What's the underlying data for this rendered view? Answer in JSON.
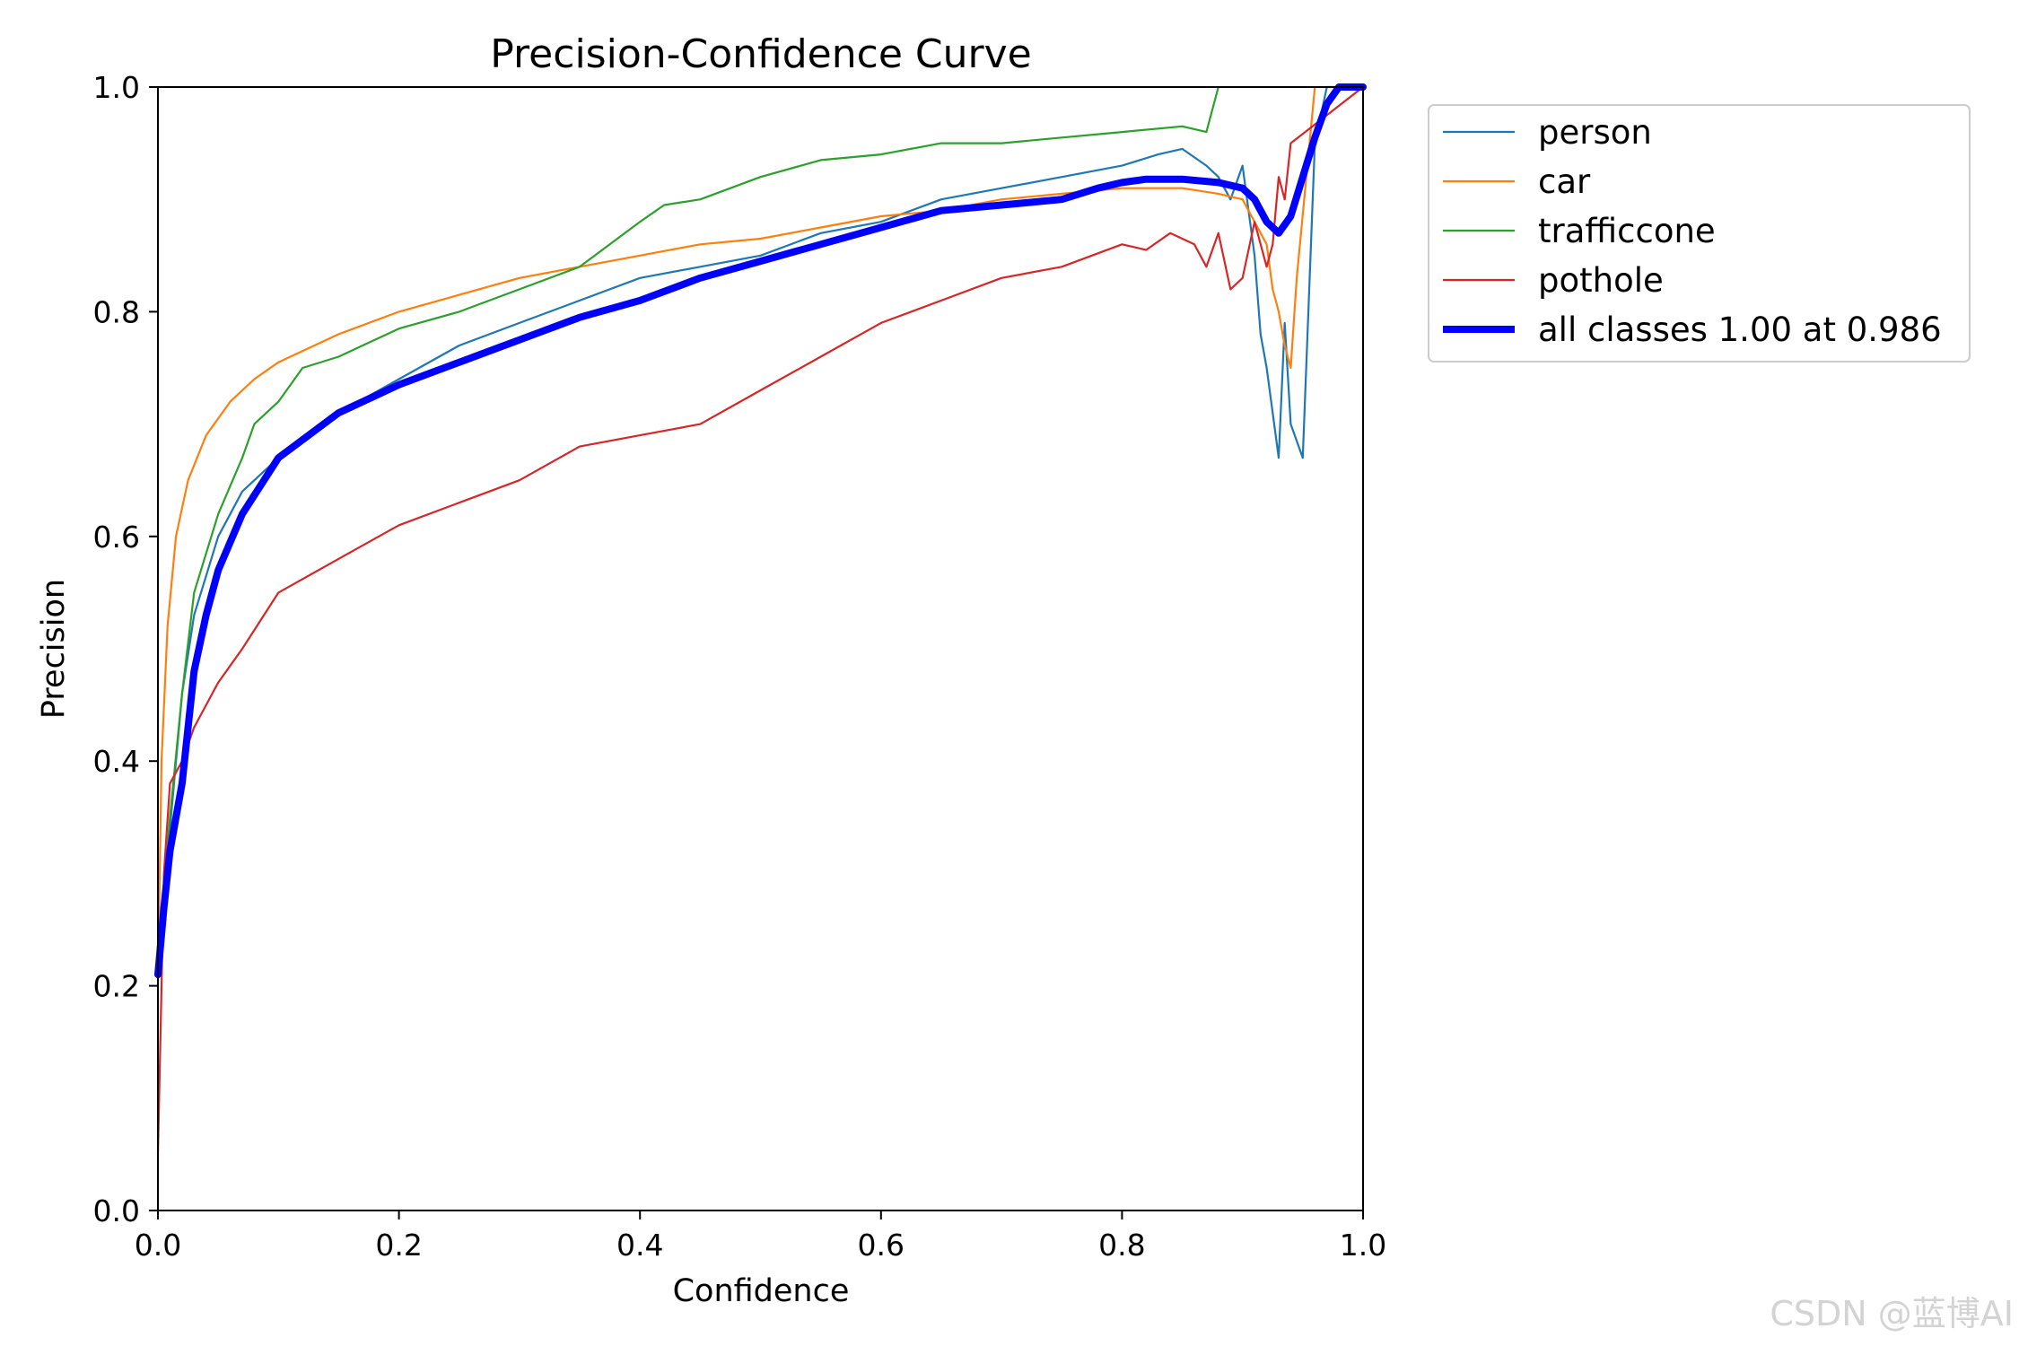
{
  "chart_data": {
    "type": "line",
    "title": "Precision-Confidence Curve",
    "xlabel": "Confidence",
    "ylabel": "Precision",
    "xlim": [
      0,
      1
    ],
    "ylim": [
      0,
      1
    ],
    "xticks": [
      "0.0",
      "0.2",
      "0.4",
      "0.6",
      "0.8",
      "1.0"
    ],
    "yticks": [
      "0.0",
      "0.2",
      "0.4",
      "0.6",
      "0.8",
      "1.0"
    ],
    "grid": false,
    "legend_position": "outside-top-right",
    "series": [
      {
        "name": "person",
        "color": "#1f77b4",
        "width": "thin",
        "x": [
          0,
          0.005,
          0.01,
          0.02,
          0.03,
          0.05,
          0.07,
          0.1,
          0.15,
          0.2,
          0.25,
          0.3,
          0.35,
          0.4,
          0.45,
          0.5,
          0.55,
          0.6,
          0.65,
          0.7,
          0.75,
          0.8,
          0.83,
          0.85,
          0.87,
          0.88,
          0.89,
          0.9,
          0.91,
          0.915,
          0.92,
          0.93,
          0.935,
          0.94,
          0.95,
          0.96,
          0.97,
          0.98,
          1.0
        ],
        "y": [
          0.21,
          0.28,
          0.34,
          0.46,
          0.53,
          0.6,
          0.64,
          0.67,
          0.71,
          0.74,
          0.77,
          0.79,
          0.81,
          0.83,
          0.84,
          0.85,
          0.87,
          0.88,
          0.9,
          0.91,
          0.92,
          0.93,
          0.94,
          0.945,
          0.93,
          0.92,
          0.9,
          0.93,
          0.85,
          0.78,
          0.75,
          0.67,
          0.79,
          0.7,
          0.67,
          0.95,
          1.0,
          1.0,
          1.0
        ]
      },
      {
        "name": "car",
        "color": "#ff7f0e",
        "width": "thin",
        "x": [
          0,
          0.003,
          0.008,
          0.015,
          0.025,
          0.04,
          0.06,
          0.08,
          0.1,
          0.15,
          0.2,
          0.25,
          0.3,
          0.35,
          0.4,
          0.45,
          0.5,
          0.55,
          0.6,
          0.65,
          0.7,
          0.75,
          0.8,
          0.85,
          0.88,
          0.9,
          0.91,
          0.92,
          0.925,
          0.93,
          0.935,
          0.94,
          0.945,
          0.96,
          0.98,
          1.0
        ],
        "y": [
          0.2,
          0.4,
          0.52,
          0.6,
          0.65,
          0.69,
          0.72,
          0.74,
          0.755,
          0.78,
          0.8,
          0.815,
          0.83,
          0.84,
          0.85,
          0.86,
          0.865,
          0.875,
          0.885,
          0.89,
          0.9,
          0.905,
          0.91,
          0.91,
          0.905,
          0.9,
          0.88,
          0.86,
          0.82,
          0.8,
          0.77,
          0.75,
          0.83,
          1.0,
          1.0,
          1.0
        ]
      },
      {
        "name": "trafficcone",
        "color": "#2ca02c",
        "width": "thin",
        "x": [
          0,
          0.01,
          0.02,
          0.03,
          0.05,
          0.07,
          0.08,
          0.1,
          0.12,
          0.15,
          0.18,
          0.2,
          0.25,
          0.3,
          0.35,
          0.4,
          0.42,
          0.45,
          0.5,
          0.55,
          0.6,
          0.65,
          0.7,
          0.75,
          0.8,
          0.85,
          0.87,
          0.875,
          0.88
        ],
        "y": [
          0.22,
          0.35,
          0.46,
          0.55,
          0.62,
          0.67,
          0.7,
          0.72,
          0.75,
          0.76,
          0.775,
          0.785,
          0.8,
          0.82,
          0.84,
          0.88,
          0.895,
          0.9,
          0.92,
          0.935,
          0.94,
          0.95,
          0.95,
          0.955,
          0.96,
          0.965,
          0.96,
          0.98,
          1.0
        ]
      },
      {
        "name": "pothole",
        "color": "#d62728",
        "width": "thin",
        "x": [
          0,
          0.005,
          0.01,
          0.02,
          0.03,
          0.05,
          0.07,
          0.1,
          0.15,
          0.2,
          0.25,
          0.3,
          0.35,
          0.4,
          0.45,
          0.5,
          0.55,
          0.6,
          0.65,
          0.7,
          0.75,
          0.8,
          0.82,
          0.84,
          0.86,
          0.87,
          0.88,
          0.89,
          0.9,
          0.91,
          0.92,
          0.925,
          0.93,
          0.935,
          0.94,
          1.0
        ],
        "y": [
          0.05,
          0.3,
          0.38,
          0.4,
          0.43,
          0.47,
          0.5,
          0.55,
          0.58,
          0.61,
          0.63,
          0.65,
          0.68,
          0.69,
          0.7,
          0.73,
          0.76,
          0.79,
          0.81,
          0.83,
          0.84,
          0.86,
          0.855,
          0.87,
          0.86,
          0.84,
          0.87,
          0.82,
          0.83,
          0.88,
          0.84,
          0.86,
          0.92,
          0.9,
          0.95,
          1.0
        ]
      },
      {
        "name": "all classes 1.00 at 0.986",
        "color": "#0000ff",
        "width": "thick",
        "x": [
          0,
          0.005,
          0.01,
          0.02,
          0.03,
          0.04,
          0.05,
          0.07,
          0.1,
          0.15,
          0.2,
          0.25,
          0.3,
          0.35,
          0.4,
          0.45,
          0.5,
          0.55,
          0.6,
          0.65,
          0.7,
          0.72,
          0.75,
          0.78,
          0.8,
          0.82,
          0.85,
          0.88,
          0.9,
          0.91,
          0.92,
          0.93,
          0.94,
          0.95,
          0.96,
          0.97,
          0.98,
          0.986,
          1.0
        ],
        "y": [
          0.21,
          0.27,
          0.32,
          0.38,
          0.48,
          0.53,
          0.57,
          0.62,
          0.67,
          0.71,
          0.735,
          0.755,
          0.775,
          0.795,
          0.81,
          0.83,
          0.845,
          0.86,
          0.875,
          0.89,
          0.895,
          0.897,
          0.9,
          0.91,
          0.915,
          0.918,
          0.918,
          0.915,
          0.91,
          0.9,
          0.88,
          0.87,
          0.885,
          0.92,
          0.955,
          0.985,
          1.0,
          1.0,
          1.0
        ]
      }
    ],
    "legend": [
      "person",
      "car",
      "trafficcone",
      "pothole",
      "all classes 1.00 at 0.986"
    ]
  },
  "watermark": "CSDN @蓝博AI"
}
